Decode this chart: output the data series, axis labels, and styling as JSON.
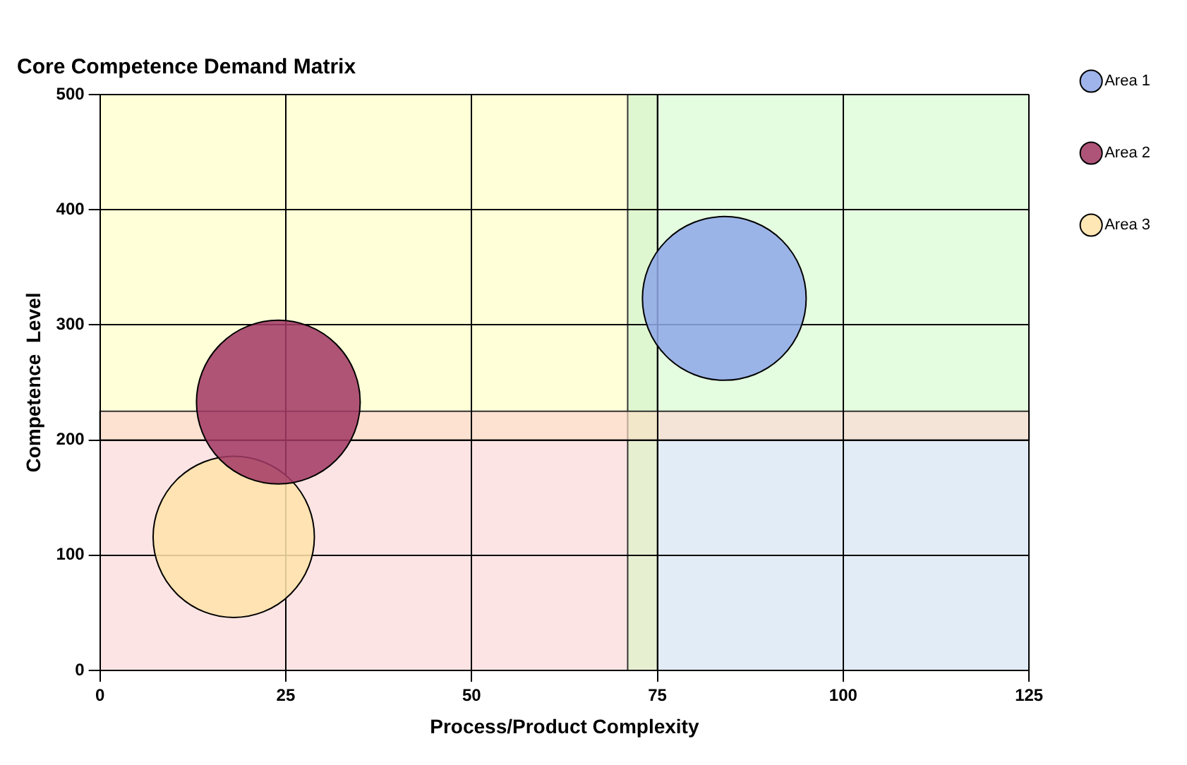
{
  "chart_data": {
    "type": "bubble",
    "title": "Core Competence Demand Matrix",
    "xlabel": "Process/Product Complexity",
    "ylabel": "Competence  Level",
    "xlim": [
      0,
      125
    ],
    "xticks": [
      0,
      25,
      50,
      75,
      100,
      125
    ],
    "ylim": [
      0,
      500
    ],
    "yticks": [
      0,
      100,
      200,
      300,
      400,
      500
    ],
    "grid": true,
    "legend": "right",
    "bands": [
      {
        "axis": "x",
        "from": 71,
        "to": 75,
        "color": "#ddf5c8"
      },
      {
        "axis": "y",
        "from": 200,
        "to": 225,
        "color": "#fde0c8"
      }
    ],
    "series": [
      {
        "name": "Area 1",
        "color": "#8fa8e8",
        "x": [
          84
        ],
        "values": [
          323
        ],
        "sizes": [
          1
        ]
      },
      {
        "name": "Area 2",
        "color": "#a33a64",
        "x": [
          24
        ],
        "values": [
          233
        ],
        "sizes": [
          1
        ]
      },
      {
        "name": "Area 3",
        "color": "#ffe2aa",
        "x": [
          18
        ],
        "values": [
          116
        ],
        "sizes": [
          0.97
        ]
      }
    ]
  }
}
